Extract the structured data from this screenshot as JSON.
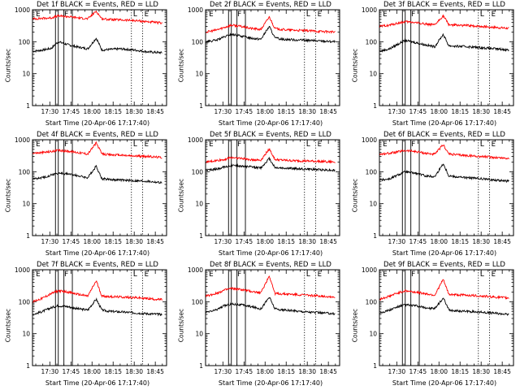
{
  "chart_data": {
    "type": "line",
    "layout": "3x3 grid",
    "common": {
      "xlabel": "Start Time (20-Apr-06 17:17:40)",
      "ylabel": "Counts/sec",
      "xlim": [
        "17:17:40",
        "18:53:00"
      ],
      "ylim": [
        1,
        1000
      ],
      "y_scale": "log",
      "x_ticks": [
        "17:30",
        "17:45",
        "18:00",
        "18:15",
        "18:30",
        "18:45"
      ],
      "y_ticks": [
        "1",
        "10",
        "100",
        "1000"
      ],
      "series_colors": {
        "events": "#000000",
        "lld": "#ff0000"
      },
      "series_labels": {
        "events": "BLACK = Events",
        "lld": "RED = LLD"
      },
      "flare_peak_time": "18:03",
      "dotted_marker_times": [
        "18:28",
        "18:36"
      ],
      "markers": {
        "E": "17:19",
        "F": "17:39",
        "L": "18:28",
        "E2": "18:36"
      },
      "marker_letters": [
        "E",
        "F",
        "L",
        "E"
      ]
    },
    "panels": [
      {
        "title": "Det 1f BLACK = Events, RED = LLD",
        "attenuator_box_times": [
          "17:34",
          "17:36",
          "17:40",
          "17:46"
        ],
        "series": [
          {
            "key": "events",
            "x": [
              "17:18",
              "17:25",
              "17:31",
              "17:36",
              "17:43",
              "17:50",
              "17:57",
              "18:03",
              "18:07",
              "18:12",
              "18:20",
              "18:30",
              "18:40",
              "18:50"
            ],
            "y": [
              50,
              55,
              62,
              100,
              80,
              68,
              60,
              130,
              55,
              57,
              60,
              55,
              48,
              45
            ]
          },
          {
            "key": "lld",
            "x": [
              "17:18",
              "17:25",
              "17:31",
              "17:36",
              "17:43",
              "17:50",
              "17:57",
              "18:03",
              "18:07",
              "18:12",
              "18:20",
              "18:30",
              "18:40",
              "18:50"
            ],
            "y": [
              520,
              540,
              560,
              640,
              610,
              560,
              520,
              900,
              520,
              500,
              480,
              460,
              420,
              380
            ]
          }
        ]
      },
      {
        "title": "Det 2f BLACK = Events, RED = LLD",
        "attenuator_box_times": [
          "17:34",
          "17:36",
          "17:40",
          "17:46"
        ],
        "series": [
          {
            "key": "events",
            "x": [
              "17:18",
              "17:25",
              "17:31",
              "17:36",
              "17:43",
              "17:50",
              "17:57",
              "18:03",
              "18:07",
              "18:12",
              "18:20",
              "18:30",
              "18:40",
              "18:50"
            ],
            "y": [
              100,
              110,
              140,
              170,
              150,
              130,
              120,
              300,
              130,
              120,
              115,
              110,
              105,
              100
            ]
          },
          {
            "key": "lld",
            "x": [
              "17:18",
              "17:25",
              "17:31",
              "17:36",
              "17:43",
              "17:50",
              "17:57",
              "18:03",
              "18:07",
              "18:12",
              "18:20",
              "18:30",
              "18:40",
              "18:50"
            ],
            "y": [
              200,
              230,
              280,
              330,
              300,
              260,
              240,
              600,
              260,
              240,
              230,
              220,
              210,
              200
            ]
          }
        ]
      },
      {
        "title": "Det 3f BLACK = Events, RED = LLD",
        "attenuator_box_times": [
          "17:34",
          "17:36",
          "17:40",
          "17:46"
        ],
        "series": [
          {
            "key": "events",
            "x": [
              "17:18",
              "17:25",
              "17:31",
              "17:36",
              "17:43",
              "17:50",
              "17:57",
              "18:03",
              "18:07",
              "18:12",
              "18:20",
              "18:30",
              "18:40",
              "18:50"
            ],
            "y": [
              50,
              60,
              85,
              110,
              95,
              80,
              70,
              170,
              75,
              72,
              70,
              65,
              60,
              55
            ]
          },
          {
            "key": "lld",
            "x": [
              "17:18",
              "17:25",
              "17:31",
              "17:36",
              "17:43",
              "17:50",
              "17:57",
              "18:03",
              "18:07",
              "18:12",
              "18:20",
              "18:30",
              "18:40",
              "18:50"
            ],
            "y": [
              300,
              330,
              380,
              420,
              400,
              360,
              330,
              650,
              340,
              330,
              320,
              300,
              280,
              260
            ]
          }
        ]
      },
      {
        "title": "Det 4f BLACK = Events, RED = LLD",
        "attenuator_box_times": [
          "17:34",
          "17:36",
          "17:40",
          "17:46"
        ],
        "series": [
          {
            "key": "events",
            "x": [
              "17:18",
              "17:25",
              "17:31",
              "17:36",
              "17:43",
              "17:50",
              "17:57",
              "18:03",
              "18:07",
              "18:12",
              "18:20",
              "18:30",
              "18:40",
              "18:50"
            ],
            "y": [
              60,
              65,
              80,
              90,
              85,
              75,
              65,
              150,
              60,
              58,
              55,
              52,
              50,
              45
            ]
          },
          {
            "key": "lld",
            "x": [
              "17:18",
              "17:25",
              "17:31",
              "17:36",
              "17:43",
              "17:50",
              "17:57",
              "18:03",
              "18:07",
              "18:12",
              "18:20",
              "18:30",
              "18:40",
              "18:50"
            ],
            "y": [
              380,
              400,
              430,
              460,
              440,
              400,
              360,
              800,
              360,
              340,
              330,
              310,
              300,
              280
            ]
          }
        ]
      },
      {
        "title": "Det 5f BLACK = Events, RED = LLD",
        "attenuator_box_times": [
          "17:34",
          "17:36",
          "17:40",
          "17:46"
        ],
        "series": [
          {
            "key": "events",
            "x": [
              "17:18",
              "17:25",
              "17:31",
              "17:36",
              "17:43",
              "17:50",
              "17:57",
              "18:03",
              "18:07",
              "18:12",
              "18:20",
              "18:30",
              "18:40",
              "18:50"
            ],
            "y": [
              110,
              120,
              140,
              160,
              150,
              140,
              130,
              260,
              135,
              130,
              125,
              120,
              115,
              110
            ]
          },
          {
            "key": "lld",
            "x": [
              "17:18",
              "17:25",
              "17:31",
              "17:36",
              "17:43",
              "17:50",
              "17:57",
              "18:03",
              "18:07",
              "18:12",
              "18:20",
              "18:30",
              "18:40",
              "18:50"
            ],
            "y": [
              200,
              220,
              240,
              280,
              260,
              240,
              230,
              520,
              240,
              230,
              220,
              215,
              210,
              200
            ]
          }
        ]
      },
      {
        "title": "Det 6f BLACK = Events, RED = LLD",
        "attenuator_box_times": [
          "17:34",
          "17:36",
          "17:40",
          "17:46"
        ],
        "series": [
          {
            "key": "events",
            "x": [
              "17:18",
              "17:25",
              "17:31",
              "17:36",
              "17:43",
              "17:50",
              "17:57",
              "18:03",
              "18:07",
              "18:12",
              "18:20",
              "18:30",
              "18:40",
              "18:50"
            ],
            "y": [
              55,
              60,
              80,
              100,
              90,
              75,
              70,
              180,
              75,
              70,
              65,
              60,
              55,
              50
            ]
          },
          {
            "key": "lld",
            "x": [
              "17:18",
              "17:25",
              "17:31",
              "17:36",
              "17:43",
              "17:50",
              "17:57",
              "18:03",
              "18:07",
              "18:12",
              "18:20",
              "18:30",
              "18:40",
              "18:50"
            ],
            "y": [
              350,
              380,
              420,
              460,
              430,
              380,
              350,
              700,
              360,
              340,
              320,
              300,
              280,
              260
            ]
          }
        ]
      },
      {
        "title": "Det 7f BLACK = Events, RED = LLD",
        "attenuator_box_times": [
          "17:34",
          "17:36",
          "17:40",
          "17:46"
        ],
        "series": [
          {
            "key": "events",
            "x": [
              "17:18",
              "17:25",
              "17:31",
              "17:36",
              "17:43",
              "17:50",
              "17:57",
              "18:03",
              "18:07",
              "18:12",
              "18:20",
              "18:30",
              "18:40",
              "18:50"
            ],
            "y": [
              40,
              50,
              65,
              75,
              70,
              60,
              55,
              120,
              55,
              50,
              48,
              45,
              42,
              40
            ]
          },
          {
            "key": "lld",
            "x": [
              "17:18",
              "17:25",
              "17:31",
              "17:36",
              "17:43",
              "17:50",
              "17:57",
              "18:03",
              "18:07",
              "18:12",
              "18:20",
              "18:30",
              "18:40",
              "18:50"
            ],
            "y": [
              100,
              130,
              180,
              220,
              200,
              170,
              150,
              450,
              150,
              145,
              140,
              135,
              125,
              115
            ]
          }
        ]
      },
      {
        "title": "Det 8f BLACK = Events, RED = LLD",
        "attenuator_box_times": [
          "17:34",
          "17:36",
          "17:40",
          "17:46"
        ],
        "series": [
          {
            "key": "events",
            "x": [
              "17:18",
              "17:25",
              "17:31",
              "17:36",
              "17:43",
              "17:50",
              "17:57",
              "18:03",
              "18:07",
              "18:12",
              "18:20",
              "18:30",
              "18:40",
              "18:50"
            ],
            "y": [
              45,
              55,
              75,
              85,
              80,
              70,
              60,
              140,
              60,
              55,
              52,
              48,
              45,
              42
            ]
          },
          {
            "key": "lld",
            "x": [
              "17:18",
              "17:25",
              "17:31",
              "17:36",
              "17:43",
              "17:50",
              "17:57",
              "18:03",
              "18:07",
              "18:12",
              "18:20",
              "18:30",
              "18:40",
              "18:50"
            ],
            "y": [
              150,
              180,
              230,
              260,
              240,
              210,
              190,
              650,
              180,
              175,
              170,
              160,
              150,
              140
            ]
          }
        ]
      },
      {
        "title": "Det 9f BLACK = Events, RED = LLD",
        "attenuator_box_times": [
          "17:34",
          "17:36",
          "17:40",
          "17:46"
        ],
        "series": [
          {
            "key": "events",
            "x": [
              "17:18",
              "17:25",
              "17:31",
              "17:36",
              "17:43",
              "17:50",
              "17:57",
              "18:03",
              "18:07",
              "18:12",
              "18:20",
              "18:30",
              "18:40",
              "18:50"
            ],
            "y": [
              45,
              55,
              70,
              80,
              75,
              65,
              60,
              130,
              55,
              52,
              50,
              47,
              44,
              40
            ]
          },
          {
            "key": "lld",
            "x": [
              "17:18",
              "17:25",
              "17:31",
              "17:36",
              "17:43",
              "17:50",
              "17:57",
              "18:03",
              "18:07",
              "18:12",
              "18:20",
              "18:30",
              "18:40",
              "18:50"
            ],
            "y": [
              120,
              150,
              190,
              220,
              200,
              180,
              160,
              500,
              170,
              165,
              160,
              150,
              140,
              130
            ]
          }
        ]
      }
    ]
  }
}
